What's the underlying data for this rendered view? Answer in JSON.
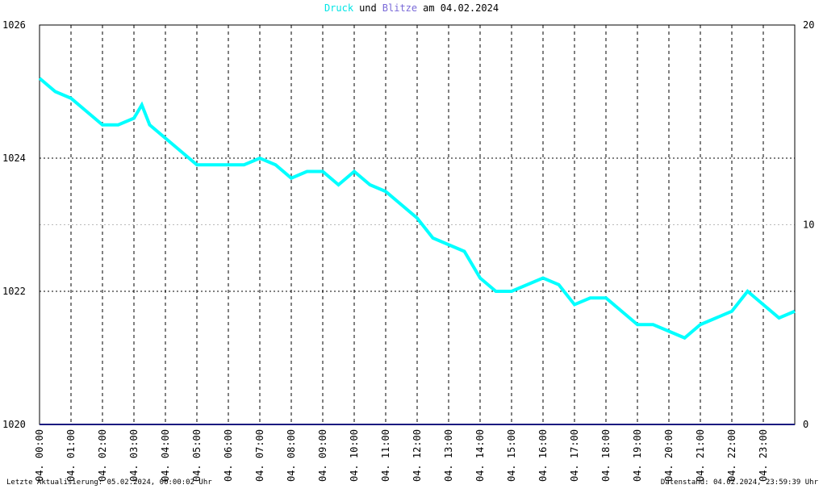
{
  "chart_data": {
    "type": "line",
    "title_parts": [
      {
        "text": "Druck",
        "color": "#00e5e5"
      },
      {
        "text": "und",
        "color": "#000000"
      },
      {
        "text": "Blitze",
        "color": "#7a6ad8"
      },
      {
        "text": "am 04.02.2024",
        "color": "#000000"
      }
    ],
    "footer_left": "Letzte Aktualisierung: 05.02.2024, 00:00:02 Uhr",
    "footer_right": "Datenstand: 04.02.2024, 23:59:39 Uhr",
    "xlim": [
      0,
      24
    ],
    "xticks": [
      {
        "value": 0,
        "label": "04. 00:00"
      },
      {
        "value": 1,
        "label": "04. 01:00"
      },
      {
        "value": 2,
        "label": "04. 02:00"
      },
      {
        "value": 3,
        "label": "04. 03:00"
      },
      {
        "value": 4,
        "label": "04. 04:00"
      },
      {
        "value": 5,
        "label": "04. 05:00"
      },
      {
        "value": 6,
        "label": "04. 06:00"
      },
      {
        "value": 7,
        "label": "04. 07:00"
      },
      {
        "value": 8,
        "label": "04. 08:00"
      },
      {
        "value": 9,
        "label": "04. 09:00"
      },
      {
        "value": 10,
        "label": "04. 10:00"
      },
      {
        "value": 11,
        "label": "04. 11:00"
      },
      {
        "value": 12,
        "label": "04. 12:00"
      },
      {
        "value": 13,
        "label": "04. 13:00"
      },
      {
        "value": 14,
        "label": "04. 14:00"
      },
      {
        "value": 15,
        "label": "04. 15:00"
      },
      {
        "value": 16,
        "label": "04. 16:00"
      },
      {
        "value": 17,
        "label": "04. 17:00"
      },
      {
        "value": 18,
        "label": "04. 18:00"
      },
      {
        "value": 19,
        "label": "04. 19:00"
      },
      {
        "value": 20,
        "label": "04. 20:00"
      },
      {
        "value": 21,
        "label": "04. 21:00"
      },
      {
        "value": 22,
        "label": "04. 22:00"
      },
      {
        "value": 23,
        "label": "04. 23:00"
      }
    ],
    "ylim": [
      1020,
      1026
    ],
    "yticks": [
      1020,
      1022,
      1024,
      1026
    ],
    "y2lim": [
      0,
      20
    ],
    "y2ticks": [
      0,
      10,
      20
    ],
    "grid": true,
    "series": [
      {
        "name": "Druck",
        "color": "#00ffff",
        "x": [
          0,
          0.5,
          1,
          1.5,
          2,
          2.5,
          3,
          3.25,
          3.5,
          4,
          4.5,
          5,
          5.5,
          6,
          6.5,
          7,
          7.5,
          8,
          8.5,
          9,
          9.5,
          10,
          10.5,
          11,
          11.5,
          12,
          12.5,
          13,
          13.5,
          14,
          14.5,
          15,
          15.5,
          16,
          16.5,
          17,
          17.5,
          18,
          18.5,
          19,
          19.5,
          20,
          20.5,
          21,
          21.5,
          22,
          22.5,
          23,
          23.5,
          24
        ],
        "values": [
          1025.2,
          1025.0,
          1024.9,
          1024.7,
          1024.5,
          1024.5,
          1024.6,
          1024.8,
          1024.5,
          1024.3,
          1024.1,
          1023.9,
          1023.9,
          1023.9,
          1023.9,
          1024.0,
          1023.9,
          1023.7,
          1023.8,
          1023.8,
          1023.6,
          1023.8,
          1023.6,
          1023.5,
          1023.3,
          1023.1,
          1022.8,
          1022.7,
          1022.6,
          1022.2,
          1022.0,
          1022.0,
          1022.1,
          1022.2,
          1022.1,
          1021.8,
          1021.9,
          1021.9,
          1021.7,
          1021.5,
          1021.5,
          1021.4,
          1021.3,
          1021.5,
          1021.6,
          1021.7,
          1022.0,
          1021.8,
          1021.6,
          1021.7
        ]
      },
      {
        "name": "Blitze",
        "color": "#1a1a80",
        "axis": "y2",
        "x": [
          0,
          24
        ],
        "values": [
          0,
          0
        ]
      }
    ]
  }
}
